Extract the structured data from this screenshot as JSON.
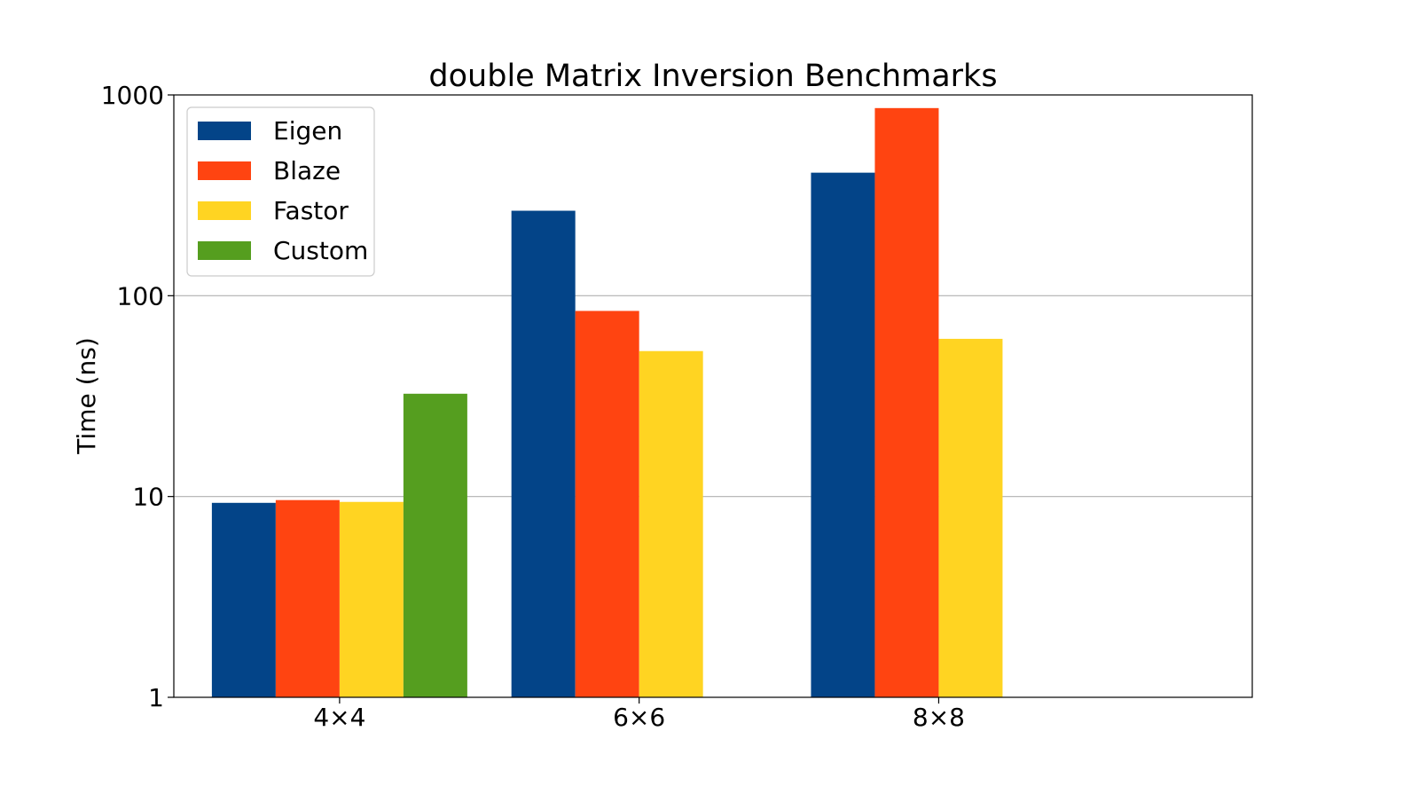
{
  "chart_data": {
    "type": "bar",
    "title": "double Matrix Inversion Benchmarks",
    "xlabel": "",
    "ylabel": "Time (ns)",
    "yscale": "log",
    "ylim": [
      1,
      1000
    ],
    "yticks": [
      1,
      10,
      100,
      1000
    ],
    "ytick_labels": [
      "1",
      "10",
      "100",
      "1000"
    ],
    "grid": "horizontal major gridlines",
    "legend_position": "top-left",
    "categories": [
      "4×4",
      "6×6",
      "8×8"
    ],
    "series": [
      {
        "name": "Eigen",
        "color": "#034488",
        "values": [
          9.3,
          265,
          410
        ]
      },
      {
        "name": "Blaze",
        "color": "#FF4411",
        "values": [
          9.6,
          84,
          860
        ]
      },
      {
        "name": "Fastor",
        "color": "#FFD422",
        "values": [
          9.4,
          53,
          61
        ]
      },
      {
        "name": "Custom",
        "color": "#559E1F",
        "values": [
          32.5,
          null,
          null
        ]
      }
    ]
  }
}
